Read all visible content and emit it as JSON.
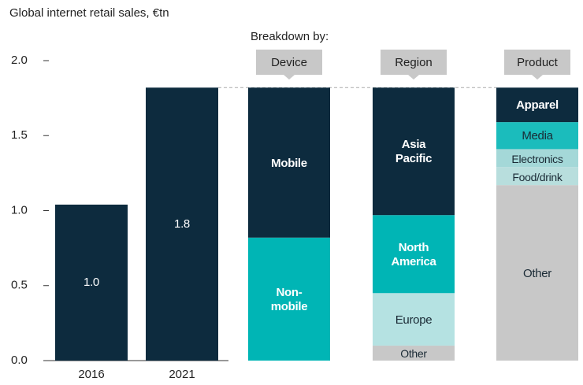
{
  "chart_data": {
    "type": "bar",
    "title": "Global internet retail sales, €tn",
    "categories": [
      "2016",
      "2021"
    ],
    "values": [
      1.04,
      1.82
    ],
    "value_labels": [
      "1.0",
      "1.8"
    ],
    "color": "#0d2b3e",
    "ylim": [
      0,
      2.0
    ],
    "yticks": [
      {
        "value": 0,
        "label": "0.0"
      },
      0.5,
      {
        "value": 1,
        "label": "1.0"
      },
      1.5,
      {
        "value": 2,
        "label": "2.0"
      }
    ],
    "breakdown_title": "Breakdown by:",
    "breakdowns": [
      {
        "name": "Device",
        "segments": [
          {
            "name": "Non-\nmobile",
            "value": 0.82,
            "color": "#00b5b5"
          },
          {
            "name": "Mobile",
            "value": 1.0,
            "color": "#0d2b3e"
          }
        ]
      },
      {
        "name": "Region",
        "segments": [
          {
            "name": "Other",
            "value": 0.1,
            "color": "#c8c8c8"
          },
          {
            "name": "Europe",
            "value": 0.35,
            "color": "#b5e2e2"
          },
          {
            "name": "North\nAmerica",
            "value": 0.52,
            "color": "#00b5b5"
          },
          {
            "name": "Asia\nPacific",
            "value": 0.85,
            "color": "#0d2b3e"
          }
        ]
      },
      {
        "name": "Product",
        "segments": [
          {
            "name": "Other",
            "value": 1.17,
            "color": "#c8c8c8"
          },
          {
            "name": "Food/drink",
            "value": 0.12,
            "color": "#b8dedd"
          },
          {
            "name": "Electronics",
            "value": 0.12,
            "color": "#a4d8d8"
          },
          {
            "name": "Media",
            "value": 0.18,
            "color": "#1bbcbc"
          },
          {
            "name": "Apparel",
            "value": 0.23,
            "color": "#0d2b3e"
          }
        ]
      }
    ]
  }
}
